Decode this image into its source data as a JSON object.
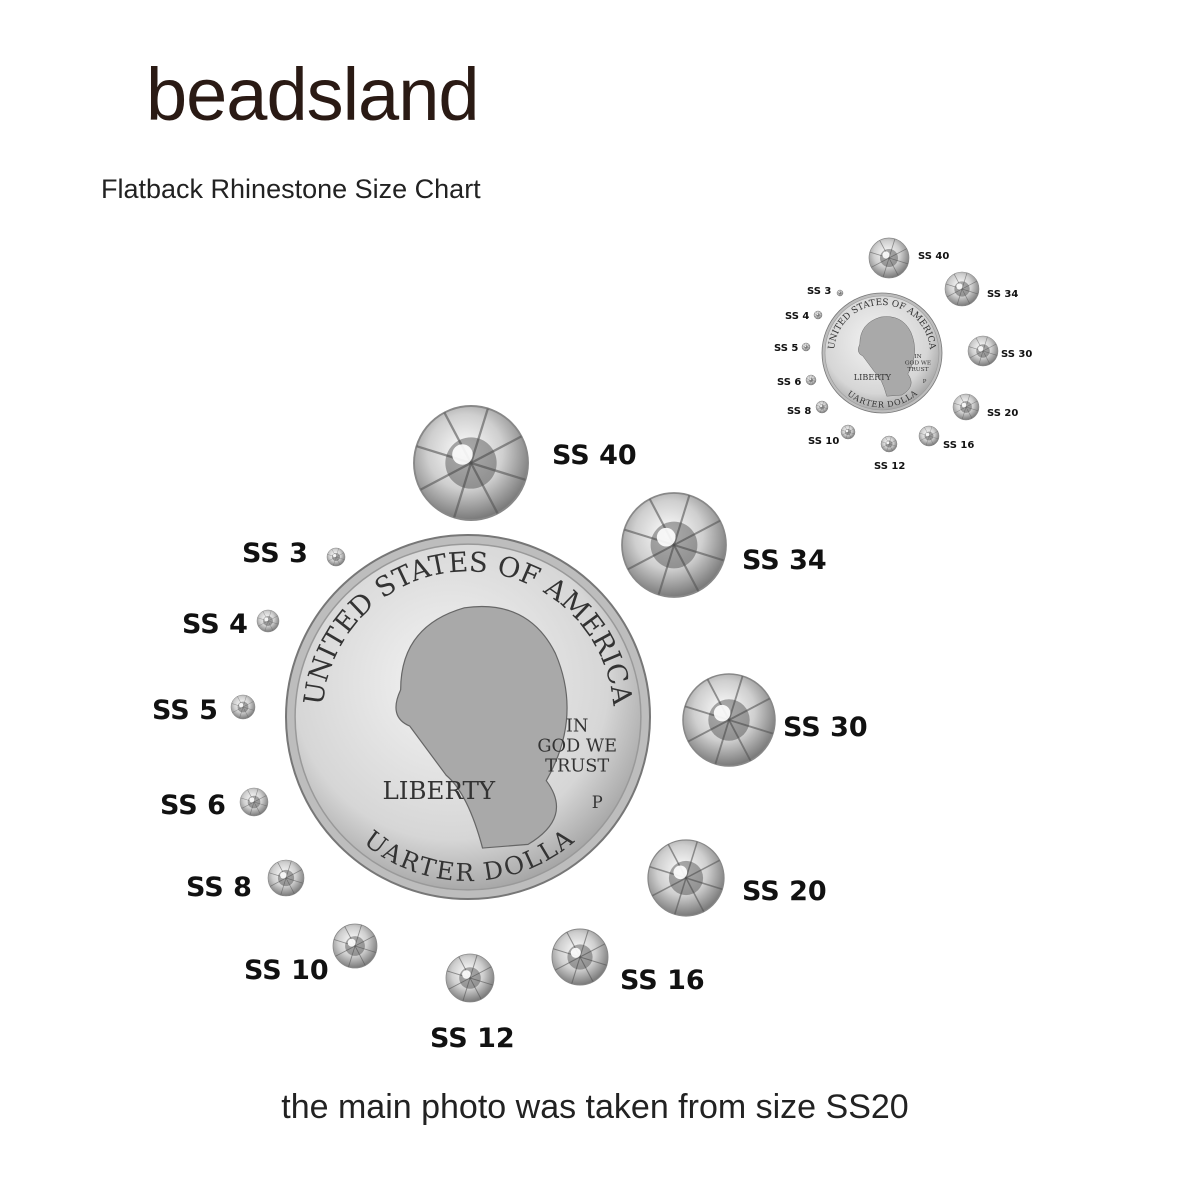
{
  "brand": {
    "logo_text": "beadsland"
  },
  "subtitle": "Flatback Rhinestone Size Chart",
  "caption": "the main photo was taken from size SS20",
  "coin": {
    "top_text": "UNITED STATES OF AMERICA",
    "motto": [
      "IN",
      "GOD WE",
      "TRUST"
    ],
    "left_text": "LIBERTY",
    "bottom_text": "QUARTER DOLLAR",
    "mint_mark": "P"
  },
  "sizes": [
    "SS 40",
    "SS 34",
    "SS 30",
    "SS 20",
    "SS 16",
    "SS 12",
    "SS 10",
    "SS 8",
    "SS 6",
    "SS 5",
    "SS 4",
    "SS 3"
  ],
  "colors": {
    "text": "#111111",
    "coin": "#c9c9c9",
    "stone": "#d8d8d8"
  }
}
